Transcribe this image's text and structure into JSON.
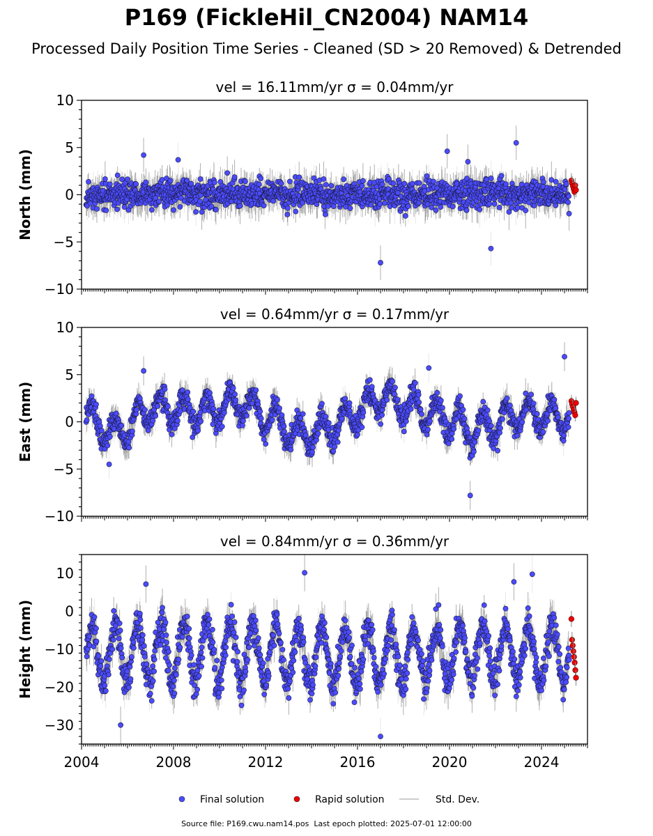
{
  "title": "P169 (FickleHil_CN2004) NAM14",
  "subtitle": "Processed Daily Position Time Series - Cleaned (SD > 20 Removed) & Detrended",
  "footer": {
    "source_label": "Source file: P169.cwu.nam14.pos",
    "last_epoch_label": "Last epoch plotted: 2025-07-01 12:00:00"
  },
  "legend": {
    "placement": "bottom-center",
    "items": [
      {
        "label": "Final solution",
        "color": "#4b4bff",
        "marker": "circle"
      },
      {
        "label": "Rapid solution",
        "color": "#ee0000",
        "marker": "circle"
      },
      {
        "label": "Std. Dev.",
        "color": "#cccccc",
        "marker": "line"
      }
    ]
  },
  "chart_data": [
    {
      "type": "scatter",
      "title": "vel = 16.11mm/yr   σ = 0.04mm/yr",
      "ylabel": "North (mm)",
      "xlim": [
        2004.0,
        2026.0
      ],
      "ylim": [
        -10,
        10
      ],
      "yticks": [
        -10,
        -5,
        0,
        5,
        10
      ],
      "xticks": [
        2004,
        2008,
        2012,
        2016,
        2020,
        2024
      ],
      "show_xtick_labels": false,
      "grid": false,
      "series": [
        {
          "name": "Final solution",
          "color": "#4b4bff",
          "x_range": [
            2004.2,
            2025.2
          ],
          "baseline": [
            [
              2004.2,
              0
            ],
            [
              2010,
              0
            ],
            [
              2016,
              0
            ],
            [
              2020,
              0
            ],
            [
              2025.2,
              0
            ]
          ],
          "amplitude": 0,
          "period": 1.0,
          "spread": 1.2,
          "sd": 1.3
        },
        {
          "name": "Rapid solution",
          "color": "#ee0000",
          "x_range": [
            2025.3,
            2025.5
          ],
          "values": [
            1.5,
            1.2,
            0.9,
            0.6,
            0.3,
            1.0,
            0.5
          ]
        }
      ],
      "outliers": [
        [
          2006.7,
          4.2
        ],
        [
          2008.2,
          3.7
        ],
        [
          2017.0,
          -7.2
        ],
        [
          2019.9,
          4.6
        ],
        [
          2021.8,
          -5.7
        ],
        [
          2022.9,
          5.5
        ],
        [
          2020.8,
          3.5
        ]
      ]
    },
    {
      "type": "scatter",
      "title": "vel = 0.64mm/yr   σ = 0.17mm/yr",
      "ylabel": "East (mm)",
      "xlim": [
        2004.0,
        2026.0
      ],
      "ylim": [
        -10,
        10
      ],
      "yticks": [
        -10,
        -5,
        0,
        5,
        10
      ],
      "xticks": [
        2004,
        2008,
        2012,
        2016,
        2020,
        2024
      ],
      "show_xtick_labels": false,
      "grid": false,
      "series": [
        {
          "name": "Final solution",
          "color": "#4b4bff",
          "x_range": [
            2004.2,
            2025.2
          ],
          "baseline": [
            [
              2004.2,
              0.5
            ],
            [
              2005.5,
              -1.5
            ],
            [
              2007,
              1.5
            ],
            [
              2009,
              1.0
            ],
            [
              2011,
              2.0
            ],
            [
              2013.5,
              -1.5
            ],
            [
              2015,
              -0.5
            ],
            [
              2017,
              2.5
            ],
            [
              2019,
              1.2
            ],
            [
              2021,
              -1.0
            ],
            [
              2023,
              0.8
            ],
            [
              2025.2,
              0.5
            ]
          ],
          "amplitude": 1.6,
          "period": 1.0,
          "spread": 0.9,
          "sd": 1.1
        },
        {
          "name": "Rapid solution",
          "color": "#ee0000",
          "x_range": [
            2025.3,
            2025.5
          ],
          "values": [
            2.2,
            1.9,
            1.6,
            1.3,
            1.0,
            0.7,
            2.0
          ]
        }
      ],
      "outliers": [
        [
          2006.7,
          5.4
        ],
        [
          2019.1,
          5.7
        ],
        [
          2020.9,
          -7.8
        ],
        [
          2025.0,
          6.9
        ],
        [
          2005.2,
          -4.5
        ]
      ]
    },
    {
      "type": "scatter",
      "title": "vel = 0.84mm/yr   σ = 0.36mm/yr",
      "ylabel": "Height (mm)",
      "xlim": [
        2004.0,
        2026.0
      ],
      "ylim": [
        -35,
        15
      ],
      "yticks": [
        -30,
        -20,
        -10,
        0,
        10
      ],
      "xticks": [
        2004,
        2008,
        2012,
        2016,
        2020,
        2024
      ],
      "show_xtick_labels": true,
      "grid": false,
      "series": [
        {
          "name": "Final solution",
          "color": "#4b4bff",
          "x_range": [
            2004.2,
            2025.2
          ],
          "baseline": [
            [
              2004.2,
              -11
            ],
            [
              2010,
              -11
            ],
            [
              2016,
              -12
            ],
            [
              2020,
              -11
            ],
            [
              2025.2,
              -11
            ]
          ],
          "amplitude": 7.5,
          "period": 1.0,
          "spread": 3.5,
          "sd": 3.5
        },
        {
          "name": "Rapid solution",
          "color": "#ee0000",
          "x_range": [
            2025.3,
            2025.5
          ],
          "values": [
            -2,
            -7.5,
            -9,
            -10.5,
            -12,
            -13.5,
            -15.5,
            -17.5
          ]
        }
      ],
      "outliers": [
        [
          2013.7,
          10.2
        ],
        [
          2023.6,
          9.8
        ],
        [
          2006.8,
          7.2
        ],
        [
          2022.8,
          7.8
        ],
        [
          2017.0,
          -33
        ],
        [
          2005.7,
          -30
        ]
      ]
    }
  ]
}
